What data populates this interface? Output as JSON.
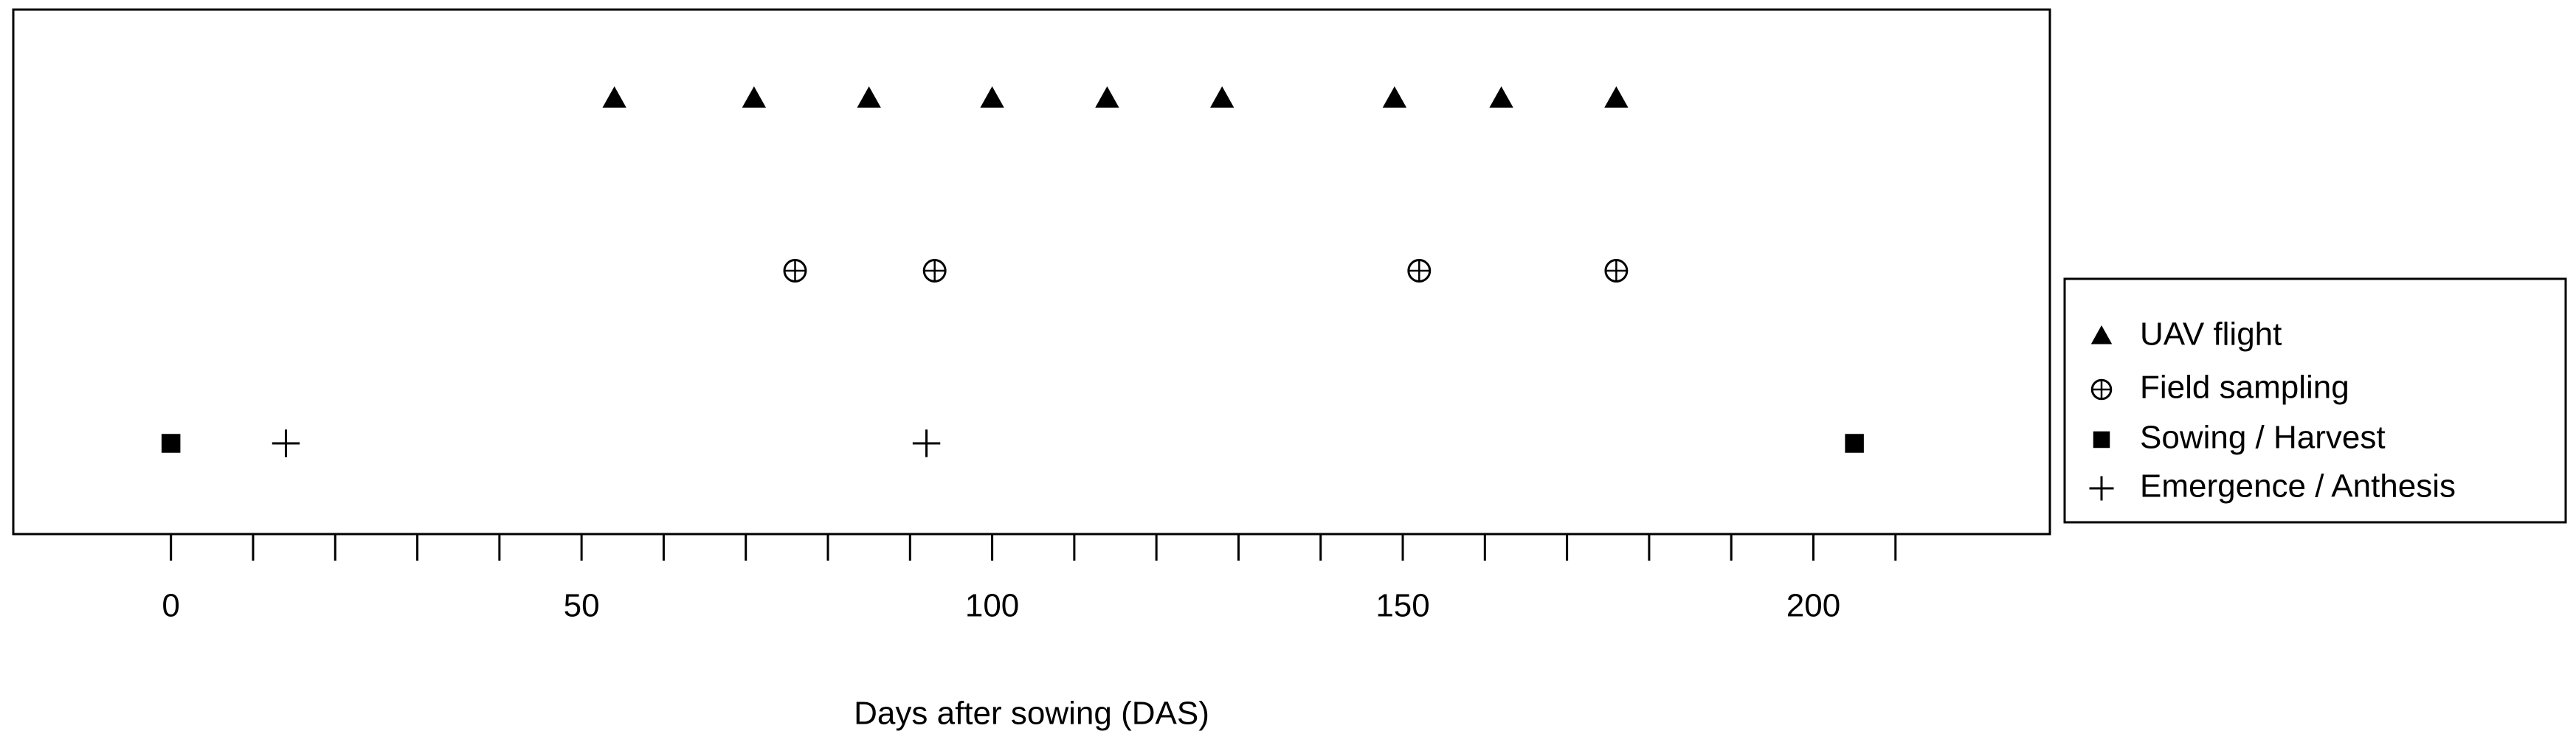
{
  "chart_data": {
    "type": "timeline",
    "x_label": "Days after sowing (DAS)",
    "xlim": [
      -19.2,
      228.8
    ],
    "xticks": [
      0,
      50,
      100,
      150,
      200
    ],
    "xminorticks": [
      10,
      20,
      30,
      40,
      60,
      70,
      80,
      90,
      110,
      120,
      130,
      140,
      160,
      170,
      180,
      190,
      210
    ],
    "legend": "right",
    "series": [
      {
        "name": "UAV flight",
        "color": "#000000",
        "marker": "triangle",
        "values": [
          54,
          71,
          85,
          100,
          114,
          128,
          149,
          162,
          176
        ]
      },
      {
        "name": "Field sampling",
        "color": "#000000",
        "marker": "circle-plus",
        "values": [
          76,
          93,
          152,
          176
        ]
      },
      {
        "name": "Sowing / Harvest",
        "color": "#000000",
        "marker": "square",
        "values": [
          0,
          205
        ]
      },
      {
        "name": "Emergence / Anthesis",
        "color": "#000000",
        "marker": "plus",
        "values": [
          14,
          92
        ]
      }
    ]
  }
}
